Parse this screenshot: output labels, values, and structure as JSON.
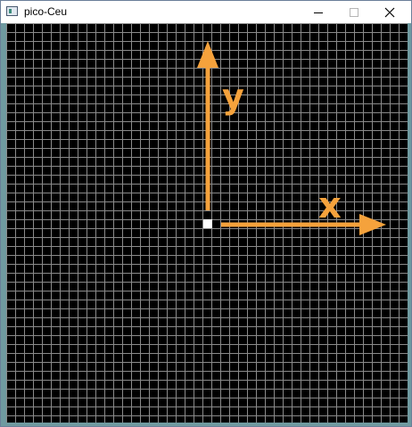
{
  "window": {
    "title": "pico-Ceu"
  },
  "controls": {
    "minimize_icon": "minimize-icon",
    "maximize_icon": "maximize-icon",
    "close_icon": "close-icon"
  },
  "canvas": {
    "background_color": "#000000",
    "grid_color": "#8a8a8a",
    "axis_color": "#f5a23c",
    "origin_marker_color": "#ffffff",
    "x_axis_label": "x",
    "y_axis_label": "y"
  }
}
